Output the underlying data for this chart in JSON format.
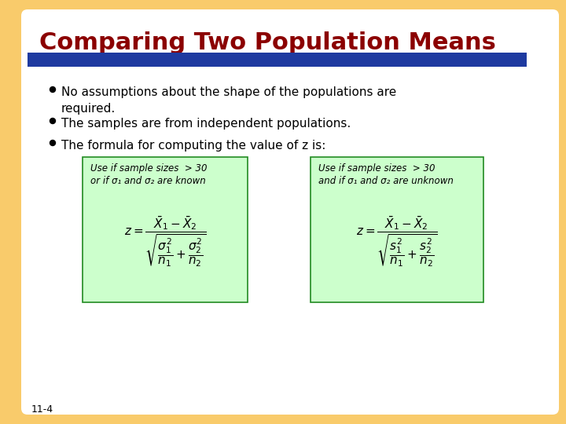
{
  "title": "Comparing Two Population Means",
  "title_color": "#8B0000",
  "title_fontsize": 22,
  "bg_color": "#FFFFFF",
  "yellow_color": "#F9CB6B",
  "blue_bar_color": "#1E3AA0",
  "bullet_points": [
    "No assumptions about the shape of the populations are\nrequired.",
    "The samples are from independent populations.",
    "The formula for computing the value of z is:"
  ],
  "bullet_color": "#000000",
  "bullet_fontsize": 11,
  "box_bg_color": "#CCFFCC",
  "box_border_color": "#228B22",
  "page_number": "11-4",
  "formula1_header_line1": "Use if sample sizes  > 30",
  "formula1_header_line2": "or if σ₁ and σ₂ are known",
  "formula2_header_line1": "Use if sample sizes  > 30",
  "formula2_header_line2": "and if σ₁ and σ₂ are unknown"
}
